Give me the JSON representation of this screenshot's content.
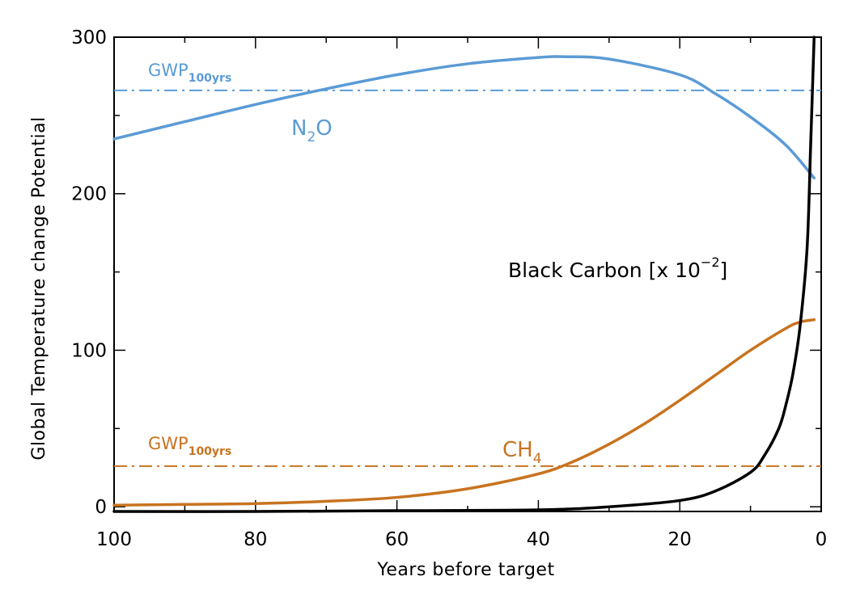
{
  "chart_data": {
    "type": "line",
    "xlabel": "Years before target",
    "ylabel": "Global Temperature change Potential",
    "xlim": [
      100,
      0
    ],
    "ylim": [
      -3,
      300
    ],
    "x_ticks": [
      "100",
      "80",
      "60",
      "40",
      "20",
      "0"
    ],
    "y_ticks": [
      "0",
      "100",
      "200",
      "300"
    ],
    "grid": false,
    "series": [
      {
        "name": "N2O",
        "color": "#5b9bd5",
        "x": [
          100,
          90,
          80,
          70,
          60,
          50,
          40,
          36,
          30,
          20,
          15,
          10,
          5,
          1
        ],
        "y": [
          235,
          246,
          257,
          267,
          276,
          283,
          287,
          287.5,
          286,
          276,
          264,
          249,
          231,
          210
        ]
      },
      {
        "name": "CH4",
        "color": "#c8731f",
        "x": [
          100,
          90,
          80,
          70,
          60,
          50,
          40,
          35,
          30,
          25,
          20,
          15,
          10,
          5,
          3,
          1
        ],
        "y": [
          1,
          1.5,
          2,
          3.5,
          6,
          11.5,
          21,
          29,
          40,
          53,
          68,
          84,
          100,
          114,
          118,
          119.5
        ]
      },
      {
        "name": "Black Carbon [x 10-2]",
        "color": "#000000",
        "x": [
          100,
          80,
          60,
          40,
          30,
          20,
          15,
          10,
          8,
          6,
          5,
          4,
          3,
          2,
          1.5,
          1
        ],
        "y": [
          -3,
          -3,
          -2.5,
          -2,
          0,
          4,
          10,
          22,
          33,
          50,
          65,
          85,
          115,
          165,
          230,
          300
        ]
      }
    ],
    "reference_lines": [
      {
        "label": "GWP",
        "subscript": "100yrs",
        "y": 266,
        "color": "#5b9bd5",
        "style": "dash-dot"
      },
      {
        "label": "GWP",
        "subscript": "100yrs",
        "y": 26,
        "color": "#c8731f",
        "style": "dash-dot"
      }
    ],
    "annotations": {
      "n2o": {
        "main": "N",
        "sub": "2",
        "tail": "O",
        "color": "#5b9bd5"
      },
      "ch4": {
        "main": "CH",
        "sub": "4",
        "color": "#c8731f"
      },
      "bc": {
        "main": "Black Carbon [x 10",
        "sup": "−2",
        "tail": "]",
        "color": "#000000"
      }
    }
  }
}
